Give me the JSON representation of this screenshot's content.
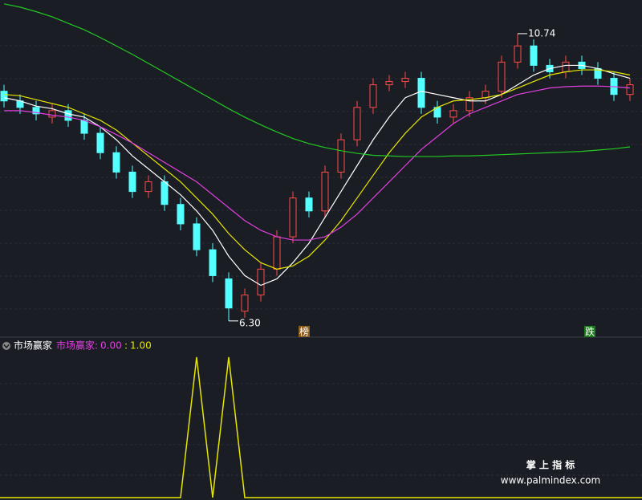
{
  "chart_data": [
    {
      "type": "candlestick",
      "candles": {
        "open": [
          9.85,
          9.7,
          9.6,
          9.45,
          9.55,
          9.4,
          9.2,
          8.9,
          8.6,
          8.3,
          8.45,
          8.1,
          7.8,
          7.4,
          6.95,
          6.45,
          6.7,
          7.1,
          7.6,
          8.2,
          8.0,
          8.6,
          9.1,
          9.6,
          9.95,
          10.0,
          10.05,
          9.6,
          9.45,
          9.55,
          9.75,
          9.85,
          10.3,
          10.55,
          10.25,
          10.15,
          10.3,
          10.2,
          10.05,
          9.8
        ],
        "high": [
          9.95,
          9.8,
          9.7,
          9.65,
          9.65,
          9.5,
          9.3,
          9.0,
          8.7,
          8.55,
          8.55,
          8.2,
          7.9,
          7.5,
          7.05,
          6.8,
          7.2,
          7.7,
          8.3,
          8.3,
          8.7,
          9.2,
          9.7,
          10.05,
          10.1,
          10.15,
          10.15,
          9.7,
          9.65,
          9.85,
          9.95,
          10.4,
          10.74,
          10.65,
          10.35,
          10.4,
          10.4,
          10.3,
          10.15,
          10.05
        ],
        "low": [
          9.6,
          9.5,
          9.4,
          9.35,
          9.3,
          9.1,
          8.8,
          8.5,
          8.2,
          8.2,
          8.0,
          7.7,
          7.3,
          6.9,
          6.3,
          6.35,
          6.6,
          7.0,
          7.5,
          7.9,
          7.9,
          8.5,
          9.0,
          9.5,
          9.85,
          9.9,
          9.5,
          9.35,
          9.35,
          9.45,
          9.65,
          9.75,
          10.2,
          10.15,
          10.05,
          10.05,
          10.1,
          9.95,
          9.7,
          9.7
        ],
        "close": [
          9.7,
          9.6,
          9.5,
          9.55,
          9.4,
          9.2,
          8.9,
          8.6,
          8.3,
          8.45,
          8.1,
          7.8,
          7.4,
          7.0,
          6.5,
          6.7,
          7.1,
          7.6,
          8.2,
          8.0,
          8.6,
          9.1,
          9.6,
          9.95,
          10.0,
          10.05,
          9.6,
          9.45,
          9.55,
          9.75,
          9.85,
          10.3,
          10.55,
          10.25,
          10.15,
          10.3,
          10.2,
          10.05,
          9.8,
          9.95
        ]
      },
      "up_color": "#ff4a4a",
      "down_color": "#54ffff",
      "lines": [
        {
          "color": "#ffffff",
          "values": [
            9.75,
            9.7,
            9.62,
            9.58,
            9.5,
            9.45,
            9.3,
            9.1,
            8.85,
            8.65,
            8.45,
            8.25,
            8.0,
            7.7,
            7.3,
            7.0,
            6.85,
            6.95,
            7.2,
            7.5,
            7.9,
            8.3,
            8.7,
            9.1,
            9.45,
            9.75,
            9.85,
            9.8,
            9.75,
            9.7,
            9.7,
            9.8,
            9.95,
            10.1,
            10.2,
            10.25,
            10.25,
            10.2,
            10.12,
            10.05
          ]
        },
        {
          "color": "#e6e600",
          "values": [
            9.8,
            9.78,
            9.72,
            9.66,
            9.6,
            9.5,
            9.4,
            9.25,
            9.05,
            8.85,
            8.65,
            8.45,
            8.2,
            7.95,
            7.65,
            7.4,
            7.2,
            7.1,
            7.15,
            7.3,
            7.55,
            7.85,
            8.2,
            8.55,
            8.9,
            9.2,
            9.45,
            9.6,
            9.7,
            9.72,
            9.75,
            9.8,
            9.9,
            10.0,
            10.1,
            10.15,
            10.18,
            10.18,
            10.15,
            10.1
          ]
        },
        {
          "color": "#e040e0",
          "values": [
            9.55,
            9.55,
            9.52,
            9.48,
            9.45,
            9.4,
            9.3,
            9.18,
            9.05,
            8.9,
            8.75,
            8.6,
            8.45,
            8.25,
            8.05,
            7.85,
            7.7,
            7.6,
            7.55,
            7.55,
            7.6,
            7.75,
            7.95,
            8.2,
            8.45,
            8.7,
            8.95,
            9.15,
            9.35,
            9.5,
            9.6,
            9.7,
            9.8,
            9.85,
            9.9,
            9.92,
            9.93,
            9.93,
            9.92,
            9.9
          ]
        },
        {
          "color": "#22c922",
          "values": [
            11.2,
            11.15,
            11.08,
            11.0,
            10.9,
            10.8,
            10.68,
            10.55,
            10.42,
            10.28,
            10.14,
            10.0,
            9.86,
            9.72,
            9.58,
            9.45,
            9.33,
            9.22,
            9.12,
            9.04,
            8.98,
            8.93,
            8.89,
            8.86,
            8.85,
            8.84,
            8.84,
            8.84,
            8.85,
            8.85,
            8.86,
            8.87,
            8.88,
            8.89,
            8.9,
            8.91,
            8.92,
            8.94,
            8.96,
            8.99
          ]
        }
      ],
      "ylim": [
        6.05,
        11.26
      ],
      "low_label": {
        "value": 6.3,
        "label": "6.30"
      },
      "high_label": 10.74,
      "annotations": [
        "榜",
        "跌"
      ]
    },
    {
      "type": "line",
      "title": "市场赢家",
      "legend_name": "市场赢家:",
      "current_values": [
        {
          "value": 0,
          "label": "0.00"
        },
        {
          "value": 1,
          "label": "1.00"
        }
      ],
      "separator": ":",
      "color": "#e6e600",
      "values": [
        0,
        0,
        0,
        0,
        0,
        0,
        0,
        0,
        0,
        0,
        0,
        0,
        1,
        0,
        1,
        0,
        0,
        0,
        0,
        0,
        0,
        0,
        0,
        0,
        0,
        0,
        0,
        0,
        0,
        0,
        0,
        0,
        0,
        0,
        0,
        0,
        0,
        0,
        0,
        0
      ],
      "ylim": [
        0,
        1
      ]
    }
  ],
  "watermark": {
    "title": "掌 上 指 标",
    "url": "www.palmindex.com"
  }
}
